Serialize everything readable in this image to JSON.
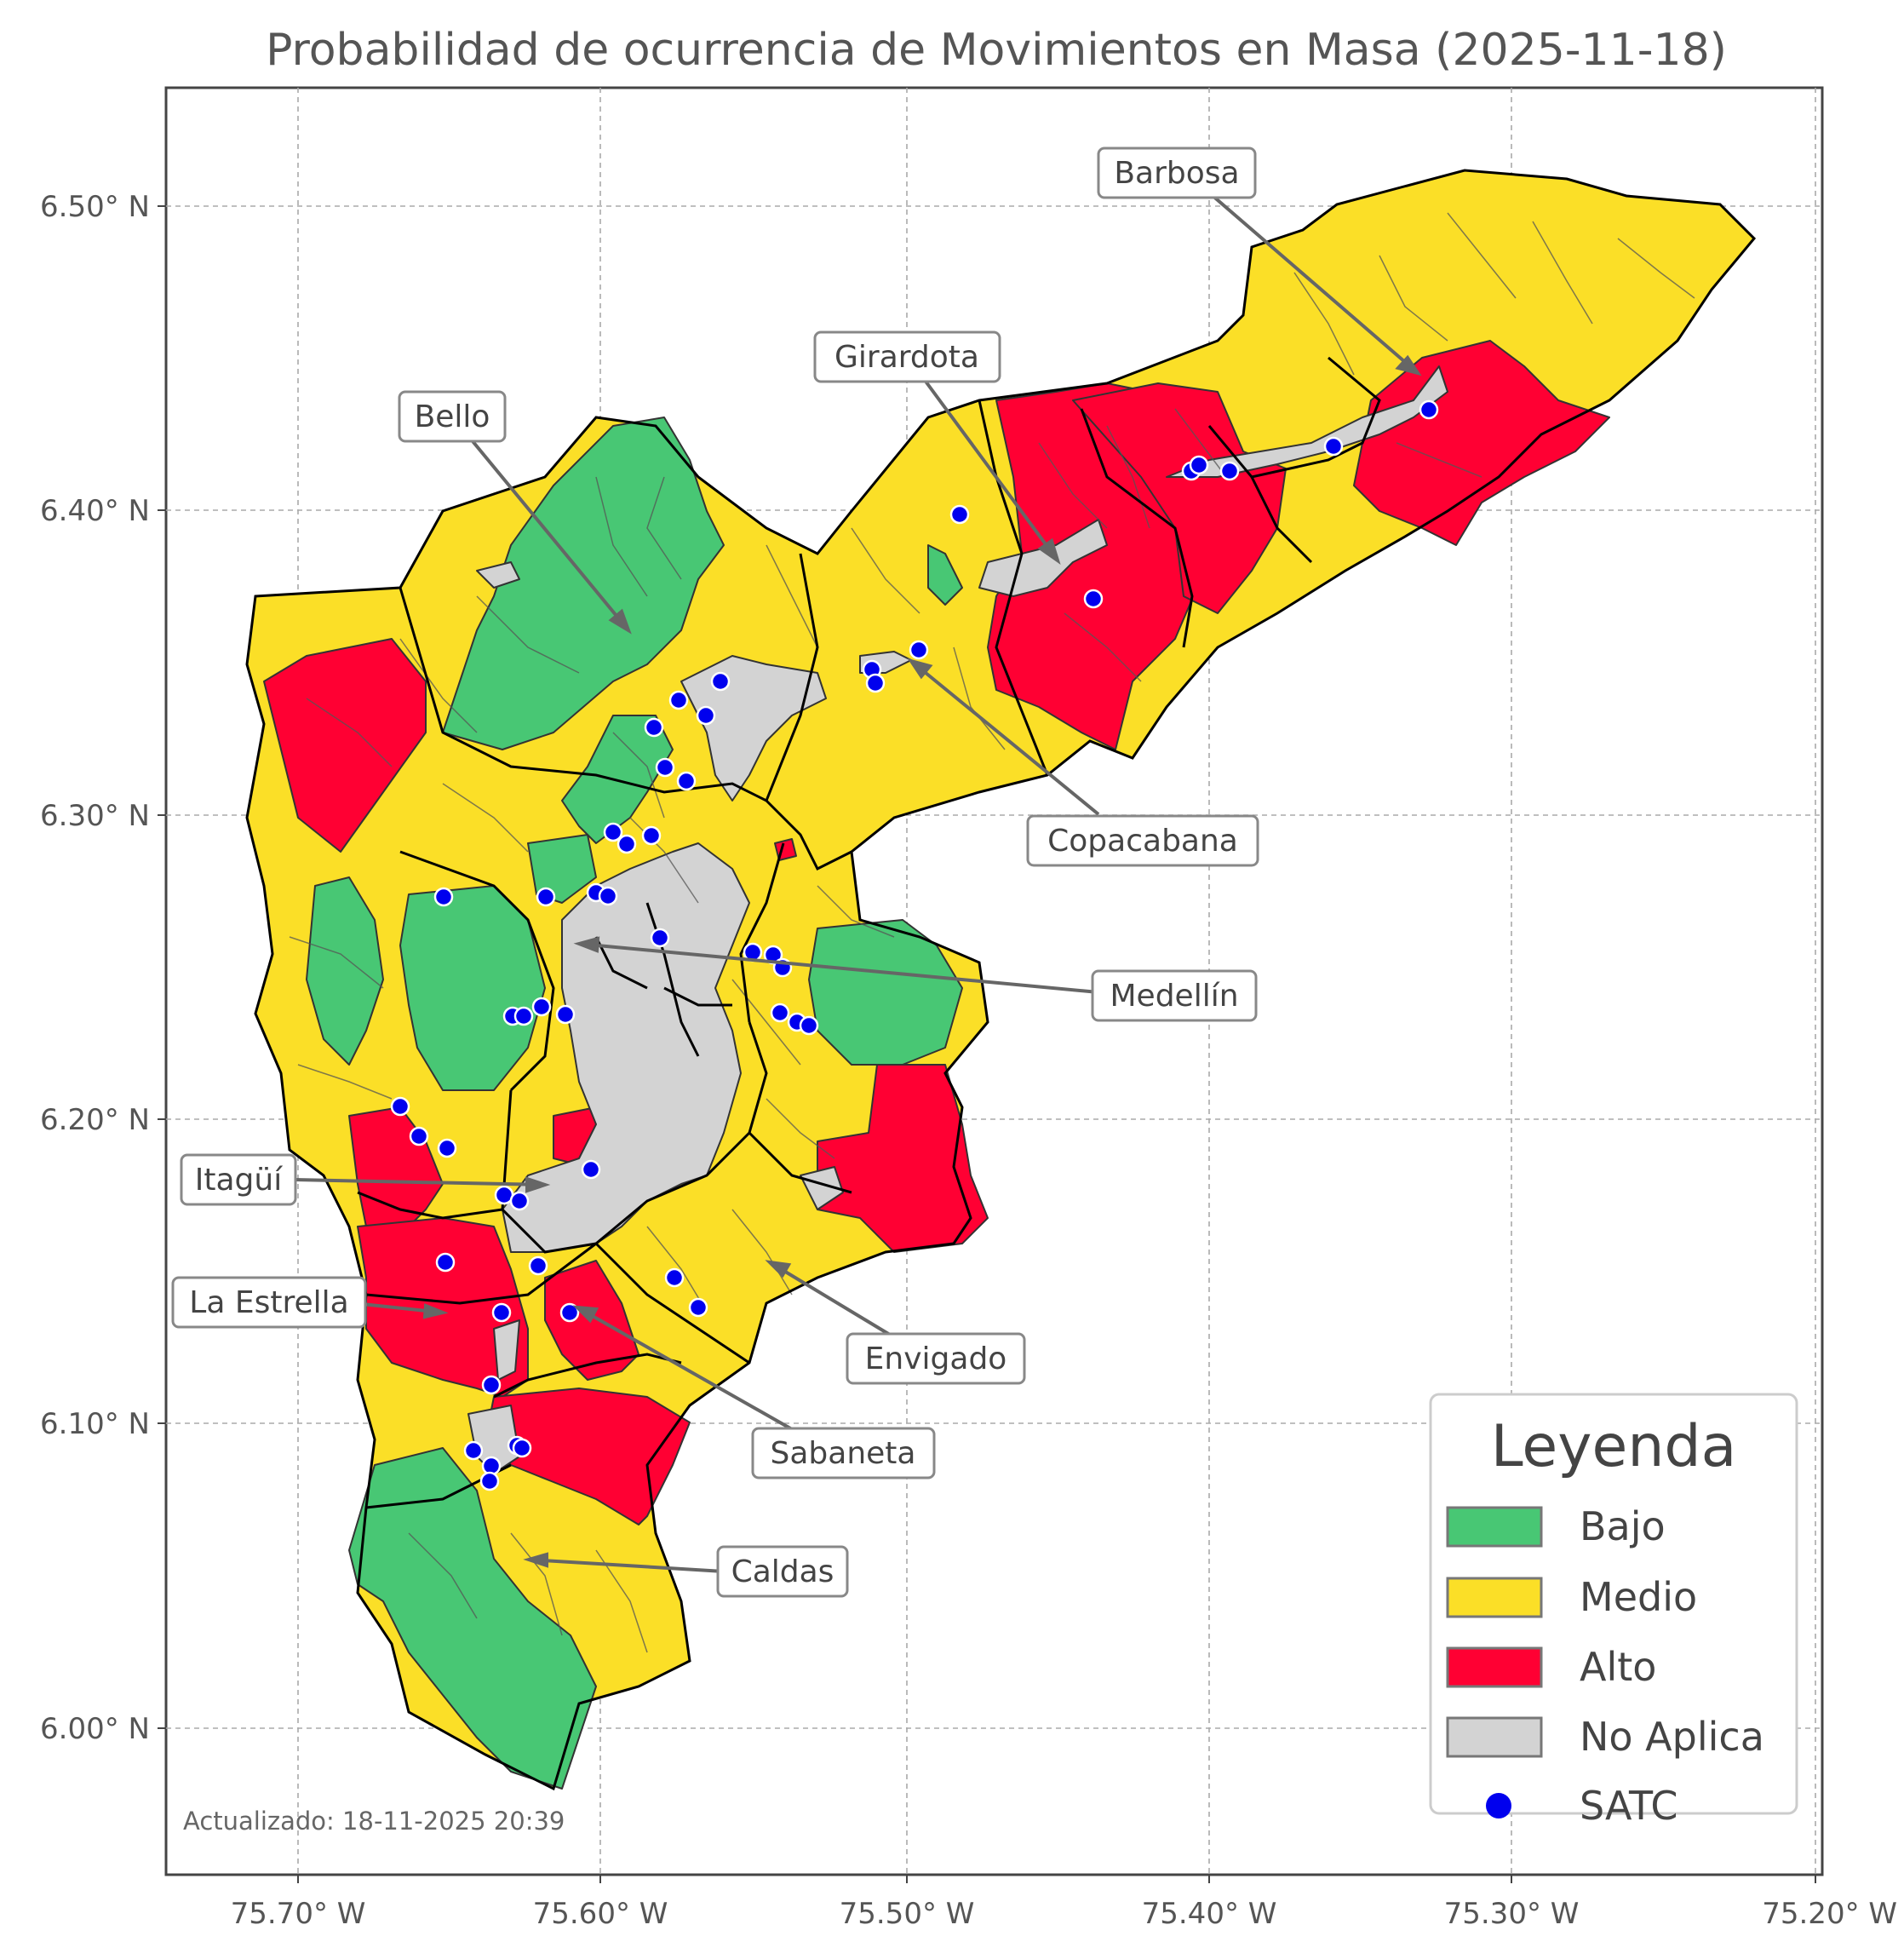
{
  "title": "Probabilidad de ocurrencia de Movimientos en Masa (2025-11-18)",
  "x_ticks": [
    "75.70° W",
    "75.60° W",
    "75.50° W",
    "75.40° W",
    "75.30° W",
    "75.20° W"
  ],
  "y_ticks": [
    "6.50° N",
    "6.40° N",
    "6.30° N",
    "6.20° N",
    "6.10° N",
    "6.00° N"
  ],
  "municipalities": [
    {
      "name": "Barbosa"
    },
    {
      "name": "Girardota"
    },
    {
      "name": "Bello"
    },
    {
      "name": "Copacabana"
    },
    {
      "name": "Medellín"
    },
    {
      "name": "Itagüí"
    },
    {
      "name": "La Estrella"
    },
    {
      "name": "Envigado"
    },
    {
      "name": "Sabaneta"
    },
    {
      "name": "Caldas"
    }
  ],
  "legend": {
    "title": "Leyenda",
    "items": [
      {
        "label": "Bajo",
        "color": "#48c774"
      },
      {
        "label": "Medio",
        "color": "#fbdf27"
      },
      {
        "label": "Alto",
        "color": "#ff0033"
      },
      {
        "label": "No Aplica",
        "color": "#d3d3d3"
      },
      {
        "label": "SATC",
        "color": "#0000ee"
      }
    ]
  },
  "updated": "Actualizado: 18-11-2025 20:39"
}
